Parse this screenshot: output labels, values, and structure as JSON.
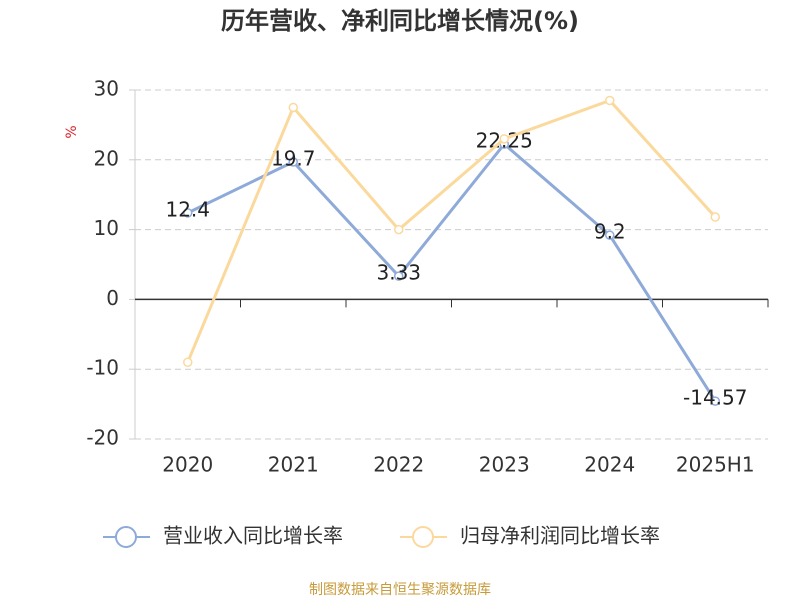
{
  "chart_data": {
    "type": "line",
    "title": "历年营收、净利同比增长情况(%)",
    "y_label": "%",
    "categories": [
      "2020",
      "2021",
      "2022",
      "2023",
      "2024",
      "2025H1"
    ],
    "series": [
      {
        "name": "营业收入同比增长率",
        "color": "#8eaad8",
        "values": [
          12.4,
          19.7,
          3.33,
          22.25,
          9.2,
          -14.57
        ],
        "show_labels": true
      },
      {
        "name": "归母净利润同比增长率",
        "color": "#fbd99d",
        "values": [
          -9,
          27.5,
          10,
          23,
          28.5,
          11.8
        ],
        "show_labels": false
      }
    ],
    "ylim": [
      -20,
      30
    ],
    "yticks": [
      -20,
      -10,
      0,
      10,
      20,
      30
    ],
    "grid": true,
    "source": "制图数据来自恒生聚源数据库"
  }
}
